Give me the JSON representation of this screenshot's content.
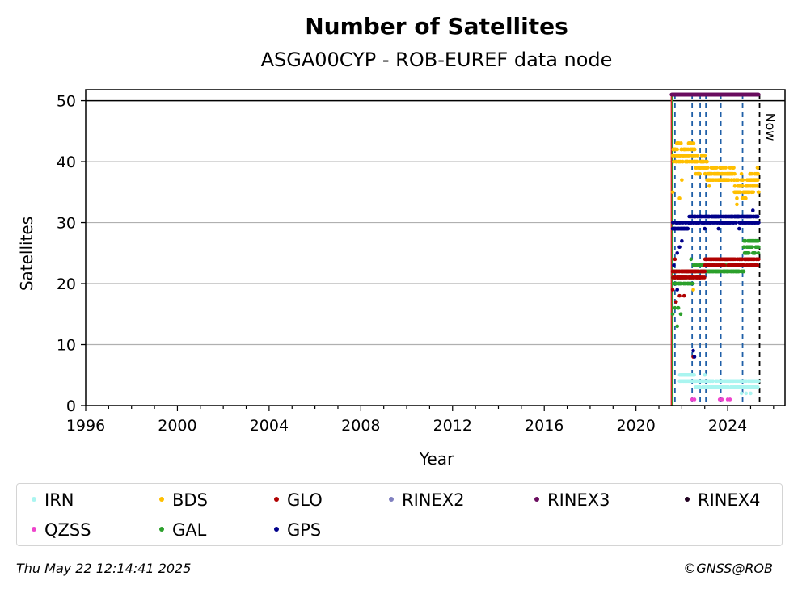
{
  "chart_data": {
    "type": "scatter",
    "title": "Number of Satellites",
    "subtitle": "ASGA00CYP - ROB-EUREF data node",
    "xlabel": "Year",
    "ylabel": "Satellites",
    "xlim": [
      1996,
      2026.5
    ],
    "ylim": [
      0,
      51.8
    ],
    "xticks": [
      1996,
      2000,
      2004,
      2008,
      2012,
      2016,
      2020,
      2024
    ],
    "yticks": [
      0,
      10,
      20,
      30,
      40,
      50
    ],
    "grid": "horizontal",
    "reference_line": 50,
    "now_label": "Now",
    "now_year": 2025.39,
    "event_lines": [
      {
        "x": 2021.55,
        "color": "#d62728"
      },
      {
        "x": 2021.6,
        "color": "#2ca02c"
      },
      {
        "x": 2021.7,
        "color": "#1f5fa8"
      },
      {
        "x": 2022.45,
        "color": "#1f5fa8"
      },
      {
        "x": 2022.8,
        "color": "#1f5fa8"
      },
      {
        "x": 2023.05,
        "color": "#1f5fa8"
      },
      {
        "x": 2023.7,
        "color": "#1f5fa8"
      },
      {
        "x": 2024.65,
        "color": "#1f5fa8"
      },
      {
        "x": 2025.39,
        "color": "#000000"
      }
    ],
    "series": [
      {
        "name": "RINEX3",
        "color": "#6a0d5f",
        "segments": [
          [
            2021.55,
            2025.35,
            51,
            51
          ]
        ],
        "outliers": []
      },
      {
        "name": "BDS",
        "color": "#ffbf00",
        "segments": [
          [
            2021.6,
            2022.6,
            40,
            43
          ],
          [
            2022.6,
            2023.1,
            38,
            41
          ],
          [
            2023.1,
            2024.3,
            37,
            39
          ],
          [
            2024.3,
            2024.8,
            34,
            37
          ],
          [
            2024.8,
            2025.35,
            35,
            38
          ]
        ],
        "outliers": [
          [
            2021.6,
            35
          ],
          [
            2021.9,
            34
          ],
          [
            2022.0,
            37
          ],
          [
            2022.4,
            31
          ],
          [
            2022.5,
            19
          ],
          [
            2023.2,
            36
          ],
          [
            2024.4,
            33
          ],
          [
            2024.6,
            38
          ],
          [
            2025.3,
            39
          ]
        ]
      },
      {
        "name": "GPS",
        "color": "#00008b",
        "segments": [
          [
            2021.6,
            2022.3,
            29,
            30
          ],
          [
            2022.3,
            2025.35,
            30,
            31
          ]
        ],
        "outliers": [
          [
            2021.8,
            25
          ],
          [
            2021.9,
            26
          ],
          [
            2022.0,
            27
          ],
          [
            2022.5,
            9
          ],
          [
            2022.55,
            8
          ],
          [
            2023.0,
            29
          ],
          [
            2023.6,
            29
          ],
          [
            2024.5,
            29
          ],
          [
            2025.1,
            32
          ],
          [
            2021.65,
            23
          ],
          [
            2021.8,
            19
          ]
        ]
      },
      {
        "name": "GLO",
        "color": "#b00000",
        "segments": [
          [
            2021.6,
            2023.0,
            21,
            22
          ],
          [
            2023.0,
            2025.35,
            23,
            24
          ]
        ],
        "outliers": [
          [
            2021.6,
            19
          ],
          [
            2021.7,
            24
          ],
          [
            2021.9,
            18
          ],
          [
            2022.1,
            18
          ],
          [
            2022.5,
            8
          ],
          [
            2021.75,
            17
          ]
        ]
      },
      {
        "name": "GAL",
        "color": "#2ca02c",
        "segments": [
          [
            2021.6,
            2022.5,
            20,
            22
          ],
          [
            2022.5,
            2024.7,
            22,
            23
          ],
          [
            2024.7,
            2025.35,
            25,
            27
          ]
        ],
        "outliers": [
          [
            2021.6,
            15
          ],
          [
            2021.7,
            16
          ],
          [
            2021.8,
            13
          ],
          [
            2021.85,
            16
          ],
          [
            2021.95,
            15
          ],
          [
            2022.4,
            24
          ],
          [
            2022.9,
            21
          ],
          [
            2024.0,
            22
          ]
        ]
      },
      {
        "name": "IRN",
        "color": "#aaf5f0",
        "segments": [
          [
            2021.9,
            2022.6,
            4,
            5
          ],
          [
            2022.6,
            2025.35,
            3,
            4
          ]
        ],
        "outliers": [
          [
            2024.6,
            2
          ],
          [
            2024.8,
            2
          ],
          [
            2025.0,
            2
          ],
          [
            2023.0,
            5
          ]
        ]
      },
      {
        "name": "QZSS",
        "color": "#ee44cc",
        "segments": [],
        "outliers": [
          [
            2022.45,
            1
          ],
          [
            2022.55,
            1
          ],
          [
            2023.65,
            1
          ],
          [
            2023.75,
            1
          ],
          [
            2024.0,
            1
          ],
          [
            2024.1,
            1
          ]
        ]
      },
      {
        "name": "RINEX2",
        "color": "#8080c0",
        "segments": [],
        "outliers": []
      },
      {
        "name": "RINEX4",
        "color": "#200020",
        "segments": [],
        "outliers": []
      }
    ]
  },
  "legend": {
    "items": [
      {
        "label": "IRN",
        "color": "#aaf5f0"
      },
      {
        "label": "BDS",
        "color": "#ffbf00"
      },
      {
        "label": "GLO",
        "color": "#b00000"
      },
      {
        "label": "RINEX2",
        "color": "#8080c0"
      },
      {
        "label": "RINEX3",
        "color": "#6a0d5f"
      },
      {
        "label": "RINEX4",
        "color": "#200020"
      },
      {
        "label": "QZSS",
        "color": "#ee44cc"
      },
      {
        "label": "GAL",
        "color": "#2ca02c"
      },
      {
        "label": "GPS",
        "color": "#00008b"
      }
    ]
  },
  "footer": {
    "timestamp": "Thu May 22 12:14:41 2025",
    "credit": "©GNSS@ROB"
  }
}
